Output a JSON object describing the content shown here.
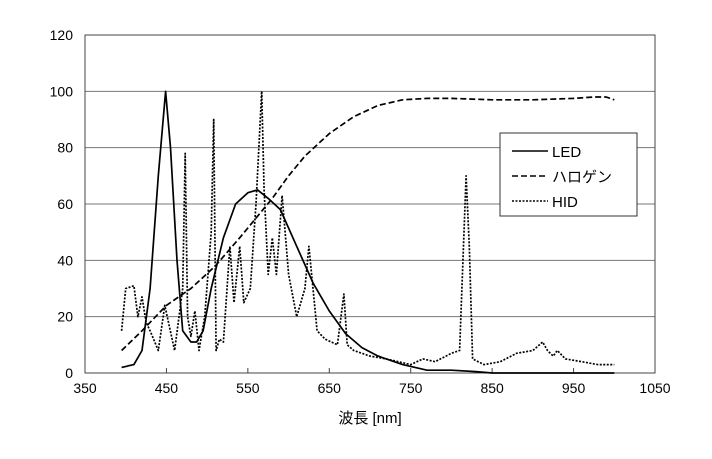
{
  "chart_data": {
    "type": "line",
    "title": "",
    "xlabel": "波長 [nm]",
    "ylabel": "",
    "xlim": [
      350,
      1050
    ],
    "ylim": [
      0,
      120
    ],
    "xticks": [
      350,
      450,
      550,
      650,
      750,
      850,
      950,
      1050
    ],
    "yticks": [
      0,
      20,
      40,
      60,
      80,
      100,
      120
    ],
    "grid": "horizontal",
    "legend_position": "right",
    "series": [
      {
        "name": "LED",
        "style": "solid",
        "x": [
          395,
          410,
          420,
          430,
          440,
          449,
          455,
          463,
          470,
          480,
          487,
          495,
          505,
          520,
          535,
          550,
          562,
          575,
          590,
          610,
          630,
          650,
          670,
          690,
          710,
          740,
          770,
          800,
          830,
          850,
          1000
        ],
        "y": [
          2,
          3,
          8,
          30,
          70,
          100,
          80,
          40,
          15,
          11,
          11,
          15,
          30,
          48,
          60,
          64,
          65,
          62,
          58,
          45,
          32,
          22,
          14,
          9,
          6,
          3,
          1,
          1,
          0.5,
          0,
          0
        ]
      },
      {
        "name": "ハロゲン",
        "style": "dashed",
        "x": [
          395,
          420,
          450,
          480,
          510,
          540,
          560,
          580,
          600,
          620,
          650,
          680,
          710,
          740,
          770,
          800,
          850,
          900,
          950,
          975,
          990,
          1000
        ],
        "y": [
          8,
          15,
          24,
          30,
          38,
          48,
          55,
          62,
          70,
          77,
          85,
          91,
          95,
          97,
          97.5,
          97.5,
          97,
          97,
          97.5,
          98,
          98,
          97
        ]
      },
      {
        "name": "HID",
        "style": "dotted",
        "x": [
          395,
          400,
          410,
          415,
          420,
          425,
          430,
          440,
          448,
          460,
          470,
          473,
          476,
          480,
          485,
          490,
          497,
          505,
          508,
          511,
          515,
          520,
          528,
          533,
          540,
          545,
          553,
          560,
          567,
          570,
          575,
          580,
          585,
          592,
          600,
          610,
          620,
          625,
          635,
          645,
          660,
          668,
          672,
          680,
          700,
          720,
          750,
          765,
          780,
          800,
          810,
          818,
          822,
          826,
          840,
          860,
          880,
          900,
          912,
          918,
          925,
          930,
          940,
          960,
          980,
          1000
        ],
        "y": [
          15,
          30,
          31,
          20,
          27,
          18,
          15,
          8,
          24,
          8,
          30,
          78,
          20,
          13,
          22,
          8,
          20,
          50,
          90,
          8,
          12,
          11,
          45,
          25,
          45,
          25,
          30,
          60,
          100,
          65,
          35,
          48,
          35,
          63,
          35,
          20,
          30,
          45,
          15,
          12,
          10,
          28,
          10,
          8,
          6,
          5,
          3,
          5,
          4,
          7,
          8,
          70,
          45,
          5,
          3,
          4,
          7,
          8,
          11,
          8,
          6,
          8,
          5,
          4,
          3,
          3
        ]
      }
    ]
  }
}
